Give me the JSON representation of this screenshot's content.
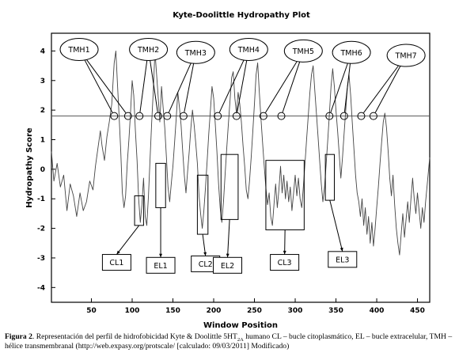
{
  "chart_data": {
    "type": "line",
    "title": "Kyte-Doolittle Hydropathy Plot",
    "xlabel": "Window Position",
    "ylabel": "Hydropathy Score",
    "xlim": [
      1,
      465
    ],
    "ylim": [
      -4.5,
      4.6
    ],
    "xticks": [
      50,
      100,
      150,
      200,
      250,
      300,
      350,
      400,
      450
    ],
    "yticks": [
      -4,
      -3,
      -2,
      -1,
      0,
      1,
      2,
      3,
      4
    ],
    "threshold": 1.8,
    "grid": false,
    "legend": "none",
    "series": [
      {
        "points": [
          [
            1,
            0.6
          ],
          [
            4,
            -0.4
          ],
          [
            8,
            0.2
          ],
          [
            12,
            -0.6
          ],
          [
            16,
            -0.2
          ],
          [
            20,
            -1.4
          ],
          [
            24,
            -0.5
          ],
          [
            28,
            -0.9
          ],
          [
            32,
            -1.6
          ],
          [
            36,
            -0.8
          ],
          [
            40,
            -1.4
          ],
          [
            44,
            -1.1
          ],
          [
            48,
            -0.4
          ],
          [
            52,
            -0.7
          ],
          [
            55,
            0.1
          ],
          [
            58,
            0.7
          ],
          [
            61,
            1.3
          ],
          [
            63,
            0.8
          ],
          [
            66,
            0.3
          ],
          [
            69,
            1.1
          ],
          [
            72,
            1.6
          ],
          [
            75,
            2.2
          ],
          [
            78,
            3.6
          ],
          [
            80,
            4.0
          ],
          [
            82,
            2.9
          ],
          [
            84,
            1.8
          ],
          [
            86,
            0.6
          ],
          [
            88,
            -0.8
          ],
          [
            90,
            -1.3
          ],
          [
            92,
            -0.9
          ],
          [
            94,
            0.2
          ],
          [
            96,
            1.0
          ],
          [
            98,
            1.9
          ],
          [
            100,
            3.0
          ],
          [
            102,
            2.5
          ],
          [
            104,
            1.3
          ],
          [
            106,
            0.3
          ],
          [
            108,
            -1.0
          ],
          [
            110,
            -1.8
          ],
          [
            112,
            -1.2
          ],
          [
            114,
            -0.3
          ],
          [
            116,
            -1.6
          ],
          [
            118,
            -1.9
          ],
          [
            120,
            -0.9
          ],
          [
            122,
            0.4
          ],
          [
            124,
            1.6
          ],
          [
            126,
            2.7
          ],
          [
            128,
            4.0
          ],
          [
            130,
            3.2
          ],
          [
            132,
            2.4
          ],
          [
            134,
            1.6
          ],
          [
            136,
            2.8
          ],
          [
            138,
            2.1
          ],
          [
            140,
            1.4
          ],
          [
            142,
            0.4
          ],
          [
            144,
            -0.6
          ],
          [
            146,
            -1.1
          ],
          [
            148,
            -0.5
          ],
          [
            150,
            0.1
          ],
          [
            152,
            0.9
          ],
          [
            154,
            1.7
          ],
          [
            156,
            2.6
          ],
          [
            158,
            2.1
          ],
          [
            160,
            1.5
          ],
          [
            162,
            0.6
          ],
          [
            164,
            -0.2
          ],
          [
            166,
            -0.8
          ],
          [
            168,
            -0.1
          ],
          [
            170,
            0.6
          ],
          [
            172,
            1.4
          ],
          [
            174,
            2.0
          ],
          [
            176,
            1.5
          ],
          [
            178,
            0.9
          ],
          [
            180,
            0.2
          ],
          [
            182,
            -0.9
          ],
          [
            184,
            -1.5
          ],
          [
            186,
            -2.0
          ],
          [
            188,
            -1.4
          ],
          [
            190,
            -0.6
          ],
          [
            192,
            0.3
          ],
          [
            194,
            1.2
          ],
          [
            196,
            2.0
          ],
          [
            198,
            2.8
          ],
          [
            200,
            2.4
          ],
          [
            202,
            1.5
          ],
          [
            204,
            0.6
          ],
          [
            206,
            -0.5
          ],
          [
            208,
            -1.3
          ],
          [
            210,
            -1.8
          ],
          [
            212,
            -1.1
          ],
          [
            214,
            -0.2
          ],
          [
            216,
            0.7
          ],
          [
            218,
            1.5
          ],
          [
            220,
            2.3
          ],
          [
            222,
            3.1
          ],
          [
            224,
            3.3
          ],
          [
            226,
            2.4
          ],
          [
            228,
            1.9
          ],
          [
            230,
            2.6
          ],
          [
            232,
            2.2
          ],
          [
            234,
            1.6
          ],
          [
            236,
            0.8
          ],
          [
            238,
            0.1
          ],
          [
            240,
            -0.7
          ],
          [
            242,
            -1.0
          ],
          [
            244,
            -0.4
          ],
          [
            246,
            0.4
          ],
          [
            248,
            1.3
          ],
          [
            250,
            2.2
          ],
          [
            252,
            3.2
          ],
          [
            254,
            3.6
          ],
          [
            256,
            2.6
          ],
          [
            258,
            1.7
          ],
          [
            260,
            0.9
          ],
          [
            262,
            0.1
          ],
          [
            264,
            -0.6
          ],
          [
            266,
            -1.2
          ],
          [
            268,
            -0.8
          ],
          [
            270,
            -1.6
          ],
          [
            272,
            -1.9
          ],
          [
            274,
            -1.2
          ],
          [
            276,
            -0.5
          ],
          [
            278,
            -1.3
          ],
          [
            280,
            -0.7
          ],
          [
            282,
            0.1
          ],
          [
            284,
            -0.8
          ],
          [
            286,
            -0.2
          ],
          [
            288,
            -1.0
          ],
          [
            290,
            -0.4
          ],
          [
            292,
            -1.1
          ],
          [
            294,
            -0.6
          ],
          [
            296,
            -1.4
          ],
          [
            298,
            -0.8
          ],
          [
            300,
            -0.2
          ],
          [
            302,
            -0.9
          ],
          [
            304,
            -0.3
          ],
          [
            306,
            -1.0
          ],
          [
            308,
            -1.3
          ],
          [
            310,
            -0.6
          ],
          [
            312,
            0.2
          ],
          [
            314,
            1.0
          ],
          [
            316,
            1.8
          ],
          [
            318,
            2.6
          ],
          [
            320,
            3.2
          ],
          [
            322,
            3.5
          ],
          [
            324,
            2.7
          ],
          [
            326,
            1.9
          ],
          [
            328,
            1.1
          ],
          [
            330,
            0.3
          ],
          [
            332,
            -0.5
          ],
          [
            334,
            -1.1
          ],
          [
            336,
            -0.6
          ],
          [
            338,
            0.2
          ],
          [
            340,
            1.0
          ],
          [
            342,
            1.9
          ],
          [
            344,
            2.8
          ],
          [
            346,
            3.4
          ],
          [
            348,
            2.8
          ],
          [
            350,
            2.0
          ],
          [
            352,
            1.3
          ],
          [
            354,
            0.5
          ],
          [
            356,
            -0.3
          ],
          [
            358,
            0.4
          ],
          [
            360,
            1.2
          ],
          [
            362,
            2.0
          ],
          [
            364,
            2.8
          ],
          [
            366,
            3.2
          ],
          [
            368,
            2.5
          ],
          [
            370,
            1.6
          ],
          [
            372,
            0.7
          ],
          [
            374,
            -0.2
          ],
          [
            376,
            -0.8
          ],
          [
            378,
            -1.1
          ],
          [
            380,
            -1.6
          ],
          [
            382,
            -1.0
          ],
          [
            384,
            -1.9
          ],
          [
            386,
            -1.3
          ],
          [
            388,
            -2.2
          ],
          [
            390,
            -1.6
          ],
          [
            392,
            -2.5
          ],
          [
            394,
            -1.8
          ],
          [
            396,
            -2.6
          ],
          [
            398,
            -2.0
          ],
          [
            400,
            -1.3
          ],
          [
            402,
            -0.6
          ],
          [
            404,
            0.2
          ],
          [
            406,
            0.9
          ],
          [
            408,
            1.6
          ],
          [
            410,
            1.9
          ],
          [
            412,
            1.4
          ],
          [
            414,
            0.6
          ],
          [
            416,
            -0.3
          ],
          [
            418,
            -0.9
          ],
          [
            420,
            -0.2
          ],
          [
            422,
            -1.2
          ],
          [
            424,
            -2.0
          ],
          [
            426,
            -2.5
          ],
          [
            428,
            -2.9
          ],
          [
            430,
            -2.2
          ],
          [
            432,
            -1.5
          ],
          [
            434,
            -2.3
          ],
          [
            436,
            -1.7
          ],
          [
            438,
            -1.1
          ],
          [
            440,
            -1.8
          ],
          [
            442,
            -1.0
          ],
          [
            444,
            -0.3
          ],
          [
            446,
            -1.0
          ],
          [
            448,
            -1.5
          ],
          [
            450,
            -0.8
          ],
          [
            452,
            -1.4
          ],
          [
            454,
            -2.0
          ],
          [
            456,
            -1.3
          ],
          [
            458,
            -1.8
          ],
          [
            460,
            -1.1
          ],
          [
            462,
            -0.5
          ],
          [
            465,
            0.4
          ]
        ]
      }
    ],
    "annotations": {
      "tmh": [
        {
          "label": "TMH1",
          "ellipse": [
            35,
            4.05
          ],
          "targets": [
            [
              78,
              1.8
            ],
            [
              95,
              1.8
            ]
          ]
        },
        {
          "label": "TMH2",
          "ellipse": [
            120,
            4.05
          ],
          "targets": [
            [
              109,
              1.8
            ],
            [
              132,
              1.8
            ]
          ]
        },
        {
          "label": "TMH3",
          "ellipse": [
            178,
            3.95
          ],
          "targets": [
            [
              143,
              1.8
            ],
            [
              163,
              1.8
            ]
          ]
        },
        {
          "label": "TMH4",
          "ellipse": [
            243,
            4.05
          ],
          "targets": [
            [
              205,
              1.8
            ],
            [
              228,
              1.8
            ]
          ]
        },
        {
          "label": "TMH5",
          "ellipse": [
            310,
            4.0
          ],
          "targets": [
            [
              261,
              1.8
            ],
            [
              283,
              1.8
            ]
          ]
        },
        {
          "label": "TMH6",
          "ellipse": [
            369,
            3.95
          ],
          "targets": [
            [
              342,
              1.8
            ],
            [
              360,
              1.8
            ]
          ]
        },
        {
          "label": "TMH7",
          "ellipse": [
            436,
            3.85
          ],
          "targets": [
            [
              381,
              1.8
            ],
            [
              396,
              1.8
            ]
          ]
        }
      ],
      "loops": [
        {
          "label": "CL1",
          "box_x": [
            103,
            114
          ],
          "box_y": [
            -0.9,
            -1.9
          ],
          "label_pos": [
            81,
            -3.15
          ]
        },
        {
          "label": "EL1",
          "box_x": [
            129,
            141
          ],
          "box_y": [
            0.2,
            -1.3
          ],
          "label_pos": [
            135,
            -3.25
          ]
        },
        {
          "label": "CL2",
          "box_x": [
            180,
            193
          ],
          "box_y": [
            -0.2,
            -2.2
          ],
          "label_pos": [
            190,
            -3.2
          ]
        },
        {
          "label": "EL2",
          "box_x": [
            209,
            230
          ],
          "box_y": [
            0.5,
            -1.7
          ],
          "label_pos": [
            217,
            -3.25
          ]
        },
        {
          "label": "CL3",
          "box_x": [
            264,
            311
          ],
          "box_y": [
            0.3,
            -2.05
          ],
          "label_pos": [
            287,
            -3.15
          ]
        },
        {
          "label": "EL3",
          "box_x": [
            337,
            348
          ],
          "box_y": [
            0.5,
            -1.05
          ],
          "label_pos": [
            358,
            -3.05
          ]
        }
      ]
    }
  },
  "caption": {
    "label": "Figura 2",
    "text_part1": ". Representación del perfil de hidrofobicidad Kyte & Doolittle 5HT",
    "subscript": "2A",
    "text_part2": " humano CL – bucle citoplasmático, EL – bucle extracelular, TMH – hélice transmembranal (http://web.expasy.org/protscale/ [calculado: 09/03/2011] Modificado)"
  }
}
